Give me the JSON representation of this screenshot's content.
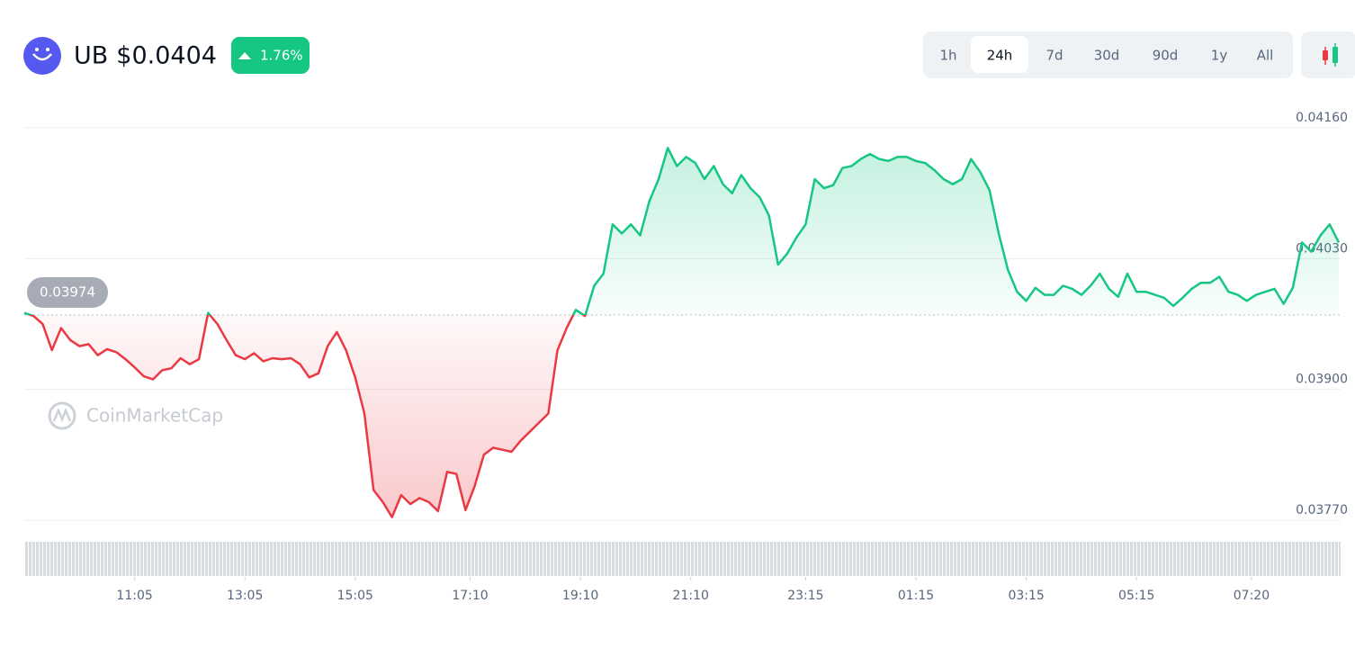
{
  "header": {
    "symbol": "UB",
    "price": "$0.0404",
    "change": "1.76%"
  },
  "timeframes": {
    "options": [
      "1h",
      "24h",
      "7d",
      "30d",
      "90d",
      "1y",
      "All"
    ],
    "active_index": 1
  },
  "watermark": "CoinMarketCap",
  "chart_data": {
    "type": "line",
    "values": [
      0.03976,
      0.03973,
      0.03965,
      0.03939,
      0.03961,
      0.03949,
      0.03943,
      0.03945,
      0.03934,
      0.0394,
      0.03937,
      0.0393,
      0.03922,
      0.03913,
      0.0391,
      0.03919,
      0.03921,
      0.03931,
      0.03925,
      0.0393,
      0.03976,
      0.03965,
      0.03949,
      0.03934,
      0.0393,
      0.03936,
      0.03928,
      0.03931,
      0.0393,
      0.03931,
      0.03925,
      0.03912,
      0.03916,
      0.03943,
      0.03957,
      0.03939,
      0.03912,
      0.03876,
      0.038,
      0.03788,
      0.03773,
      0.03795,
      0.03786,
      0.03792,
      0.03788,
      0.03779,
      0.03818,
      0.03816,
      0.0378,
      0.03804,
      0.03835,
      0.03842,
      0.0384,
      0.03838,
      0.03849,
      0.03858,
      0.03867,
      0.03876,
      0.03939,
      0.03961,
      0.03979,
      0.03973,
      0.04003,
      0.04015,
      0.04064,
      0.04055,
      0.04064,
      0.04053,
      0.04087,
      0.04109,
      0.0414,
      0.04122,
      0.04131,
      0.04125,
      0.04109,
      0.04122,
      0.04104,
      0.04095,
      0.04113,
      0.041,
      0.04091,
      0.04073,
      0.04024,
      0.04035,
      0.04051,
      0.04064,
      0.04109,
      0.041,
      0.04103,
      0.0412,
      0.04122,
      0.04129,
      0.04134,
      0.04129,
      0.04127,
      0.04131,
      0.04131,
      0.04127,
      0.04125,
      0.04118,
      0.04109,
      0.04104,
      0.04109,
      0.04129,
      0.04116,
      0.04098,
      0.04055,
      0.04019,
      0.03997,
      0.03988,
      0.04001,
      0.03994,
      0.03994,
      0.04003,
      0.04,
      0.03994,
      0.04003,
      0.04015,
      0.04,
      0.03992,
      0.04015,
      0.03997,
      0.03997,
      0.03994,
      0.03991,
      0.03983,
      0.03991,
      0.04,
      0.04006,
      0.04006,
      0.04012,
      0.03997,
      0.03994,
      0.03988,
      0.03994,
      0.03997,
      0.04,
      0.03985,
      0.04001,
      0.04046,
      0.04037,
      0.04053,
      0.04064,
      0.04046
    ],
    "baseline": 0.03974,
    "up_color": "#16c784",
    "down_color": "#ea3943",
    "xlim": [
      0,
      143
    ],
    "xticks": [
      {
        "value": 12,
        "label": "11:05"
      },
      {
        "value": 24,
        "label": "13:05"
      },
      {
        "value": 36,
        "label": "15:05"
      },
      {
        "value": 48.5,
        "label": "17:10"
      },
      {
        "value": 60.5,
        "label": "19:10"
      },
      {
        "value": 72.5,
        "label": "21:10"
      },
      {
        "value": 85,
        "label": "23:15"
      },
      {
        "value": 97,
        "label": "01:15"
      },
      {
        "value": 109,
        "label": "03:15"
      },
      {
        "value": 121,
        "label": "05:15"
      },
      {
        "value": 133.5,
        "label": "07:20"
      }
    ],
    "ylim": [
      0.0377,
      0.0416
    ],
    "yticks": [
      {
        "value": 0.0377,
        "label": "0.03770"
      },
      {
        "value": 0.039,
        "label": "0.03900"
      },
      {
        "value": 0.0403,
        "label": "0.04030"
      },
      {
        "value": 0.0416,
        "label": "0.04160"
      }
    ],
    "grid": true
  }
}
